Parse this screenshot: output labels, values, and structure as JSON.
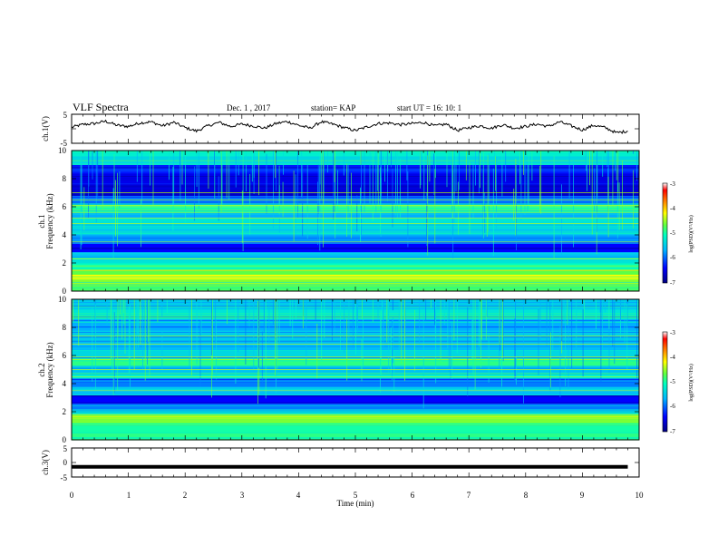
{
  "header": {
    "title": "VLF Spectra",
    "date": "Dec. 1 , 2017",
    "station": "station= KAP",
    "start_ut": "start  UT =   16: 10: 1"
  },
  "panels": {
    "ch1_label": "ch.1(V)",
    "ch1_spec_label": "ch.1",
    "ch2_spec_label": "ch.2",
    "freq_label": "Frequency (kHz)",
    "ch3_label": "ch.3(V)",
    "time_label": "Time (min)",
    "colorbar_label": "log(PSD)(V²/Hz)"
  },
  "chart_data": [
    {
      "type": "line",
      "name": "ch.1 waveform",
      "xlim": [
        0,
        10
      ],
      "ylim": [
        -5,
        5
      ],
      "y_ticks": [
        "5",
        "-5"
      ],
      "x": [
        0,
        0.2,
        0.4,
        0.6,
        0.8,
        1.0,
        1.2,
        1.4,
        1.6,
        1.8,
        2.0,
        2.2,
        2.4,
        2.6,
        2.8,
        3.0,
        3.2,
        3.4,
        3.6,
        3.8,
        4.0,
        4.2,
        4.4,
        4.6,
        4.8,
        5.0,
        5.2,
        5.4,
        5.6,
        5.8,
        6.0,
        6.2,
        6.4,
        6.6,
        6.8,
        7.0,
        7.2,
        7.4,
        7.6,
        7.8,
        8.0,
        8.2,
        8.4,
        8.6,
        8.8,
        9.0,
        9.2,
        9.4,
        9.6,
        9.8
      ],
      "y": [
        0.5,
        1.5,
        1.8,
        2.6,
        1.2,
        0.8,
        2.0,
        2.4,
        1.0,
        2.2,
        0.4,
        -0.8,
        1.0,
        2.2,
        0.8,
        1.6,
        1.0,
        0.2,
        1.8,
        2.5,
        1.2,
        0.2,
        2.4,
        1.6,
        0.4,
        -0.6,
        0.6,
        1.8,
        2.0,
        1.4,
        1.8,
        2.2,
        1.0,
        1.6,
        -0.6,
        0.4,
        1.0,
        0.2,
        1.4,
        0.2,
        0.8,
        1.6,
        0.8,
        2.4,
        1.0,
        -0.4,
        1.2,
        0.4,
        -1.4,
        -0.8
      ]
    },
    {
      "type": "heatmap",
      "name": "ch.1 spectrogram",
      "xlim": [
        0,
        10
      ],
      "ylim": [
        0,
        10
      ],
      "y_ticks": [
        "0",
        "2",
        "4",
        "6",
        "8",
        "10"
      ],
      "clim": [
        -7,
        -3
      ],
      "colorbar_ticks": [
        "-3",
        "-4",
        "-5",
        "-6",
        "-7"
      ],
      "band_edges_khz": [
        0,
        0.4,
        0.9,
        1.2,
        1.6,
        2.0,
        2.4,
        2.8,
        3.4,
        4.0,
        4.6,
        5.2,
        5.6,
        6.2,
        6.8,
        7.6,
        8.4,
        9.0,
        9.6,
        10
      ],
      "band_levels": [
        -4.8,
        -4.6,
        -4.2,
        -4.7,
        -5.1,
        -5.3,
        -5.6,
        -6.4,
        -5.8,
        -5.5,
        -5.3,
        -5.7,
        -5.0,
        -5.9,
        -6.6,
        -6.5,
        -6.3,
        -5.4,
        -5.2
      ],
      "lines_khz": [
        0.8,
        1.5,
        2.3,
        3.5,
        4.8,
        5.2,
        5.6,
        6.1,
        6.5,
        7.0
      ]
    },
    {
      "type": "heatmap",
      "name": "ch.2 spectrogram",
      "xlim": [
        0,
        10
      ],
      "ylim": [
        0,
        10
      ],
      "y_ticks": [
        "0",
        "2",
        "4",
        "6",
        "8",
        "10"
      ],
      "clim": [
        -7,
        -3
      ],
      "colorbar_ticks": [
        "-3",
        "-4",
        "-5",
        "-6",
        "-7"
      ],
      "band_edges_khz": [
        0,
        0.5,
        1.2,
        1.8,
        2.2,
        2.6,
        3.2,
        3.8,
        4.4,
        4.8,
        5.3,
        5.8,
        6.4,
        7.0,
        7.8,
        8.6,
        9.3,
        10
      ],
      "band_levels": [
        -4.9,
        -5.0,
        -4.6,
        -5.3,
        -5.9,
        -6.4,
        -5.6,
        -5.9,
        -5.2,
        -5.5,
        -4.9,
        -5.4,
        -5.6,
        -5.5,
        -5.7,
        -5.3,
        -5.5
      ],
      "lines_khz": [
        1.8,
        3.5,
        4.5,
        5.0,
        5.9,
        6.8,
        7.4
      ]
    },
    {
      "type": "line",
      "name": "ch.3 waveform",
      "xlim": [
        0,
        10
      ],
      "ylim": [
        -5,
        5
      ],
      "y_ticks": [
        "5",
        "0",
        "-5"
      ],
      "x": [
        0,
        9.8
      ],
      "y": [
        -1.5,
        -1.5
      ]
    }
  ],
  "x_axis": {
    "ticks": [
      "0",
      "1",
      "2",
      "3",
      "4",
      "5",
      "6",
      "7",
      "8",
      "9",
      "10"
    ],
    "range": [
      0,
      10
    ]
  },
  "colors": {
    "frame": "#000000",
    "trace": "#000000"
  }
}
